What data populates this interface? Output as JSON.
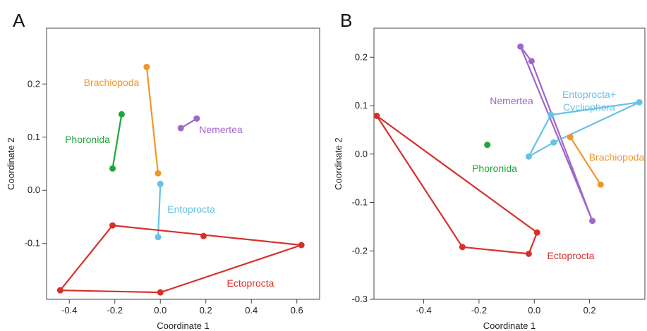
{
  "colors": {
    "Ectoprocta": "#d7302a",
    "Entoprocta": "#66c2e4",
    "Phoronida": "#1ea83c",
    "Brachiopoda": "#f0962c",
    "Nemertea": "#a066c8",
    "frame": "#444444"
  },
  "chart_data": [
    {
      "type": "scatter",
      "panel": "A",
      "xlabel": "Coordinate 1",
      "ylabel": "Coordinate 2",
      "xlim": [
        -0.5,
        0.7
      ],
      "ylim": [
        -0.205,
        0.305
      ],
      "xticks": [
        -0.4,
        -0.2,
        0.0,
        0.2,
        0.4,
        0.6
      ],
      "xtick_labels": [
        "-0.4",
        "-0.2",
        "0.0",
        "0.2",
        "0.4",
        "0.6"
      ],
      "yticks": [
        -0.1,
        0.0,
        0.1,
        0.2
      ],
      "ytick_labels": [
        "-0.1",
        "0.0",
        "0.1",
        "0.2"
      ],
      "grid": false,
      "groups": [
        {
          "name": "Brachiopoda",
          "label": "Brachiopoda",
          "points": [
            [
              -0.06,
              0.232
            ],
            [
              -0.01,
              0.032
            ]
          ],
          "polygon": false
        },
        {
          "name": "Phoronida",
          "label": "Phoronida",
          "points": [
            [
              -0.17,
              0.143
            ],
            [
              -0.21,
              0.041
            ]
          ],
          "polygon": false
        },
        {
          "name": "Nemertea",
          "label": "Nemertea",
          "points": [
            [
              0.09,
              0.117
            ],
            [
              0.16,
              0.135
            ]
          ],
          "polygon": false
        },
        {
          "name": "Entoprocta",
          "label": "Entoprocta",
          "points": [
            [
              0.0,
              0.012
            ],
            [
              -0.01,
              -0.088
            ]
          ],
          "polygon": false
        },
        {
          "name": "Ectoprocta",
          "label": "Ectoprocta",
          "points": [
            [
              -0.21,
              -0.066
            ],
            [
              0.62,
              -0.103
            ],
            [
              0.0,
              -0.192
            ],
            [
              -0.44,
              -0.188
            ]
          ],
          "extra_points": [
            [
              0.19,
              -0.086
            ]
          ],
          "polygon": true
        }
      ]
    },
    {
      "type": "scatter",
      "panel": "B",
      "xlabel": "Coordinate 1",
      "ylabel": "Coordinate 2",
      "xlim": [
        -0.58,
        0.4
      ],
      "ylim": [
        -0.3,
        0.26
      ],
      "xticks": [
        -0.4,
        -0.2,
        0.0,
        0.2
      ],
      "xtick_labels": [
        "-0.4",
        "-0.2",
        "0.0",
        "0.2"
      ],
      "yticks": [
        -0.3,
        -0.2,
        -0.1,
        0.0,
        0.1,
        0.2
      ],
      "ytick_labels": [
        "-0.3",
        "-0.2",
        "-0.1",
        "0.0",
        "0.1",
        "0.2"
      ],
      "grid": false,
      "groups": [
        {
          "name": "Ectoprocta",
          "label": "Ectoprocta",
          "points": [
            [
              -0.57,
              0.079
            ],
            [
              0.01,
              -0.162
            ],
            [
              -0.02,
              -0.206
            ],
            [
              -0.26,
              -0.192
            ]
          ],
          "polygon": true
        },
        {
          "name": "Phoronida",
          "label": "Phoronida",
          "points": [
            [
              -0.17,
              0.019
            ]
          ],
          "polygon": false
        },
        {
          "name": "Nemertea",
          "label": "Nemertea",
          "points": [
            [
              -0.05,
              0.222
            ],
            [
              0.21,
              -0.138
            ],
            [
              -0.01,
              0.192
            ]
          ],
          "polygon": true
        },
        {
          "name": "Entoprocta",
          "label": "Entoprocta+ Cycliophora",
          "label_lines": [
            "Entoprocta+",
            "Cycliophora"
          ],
          "points": [
            [
              0.06,
              0.081
            ],
            [
              0.38,
              0.107
            ],
            [
              0.07,
              0.024
            ],
            [
              -0.02,
              -0.005
            ]
          ],
          "polygon": true
        },
        {
          "name": "Brachiopoda",
          "label": "Brachiopoda",
          "points": [
            [
              0.13,
              0.035
            ],
            [
              0.24,
              -0.063
            ]
          ],
          "polygon": false
        }
      ]
    }
  ],
  "panel_labels": [
    "A",
    "B"
  ]
}
